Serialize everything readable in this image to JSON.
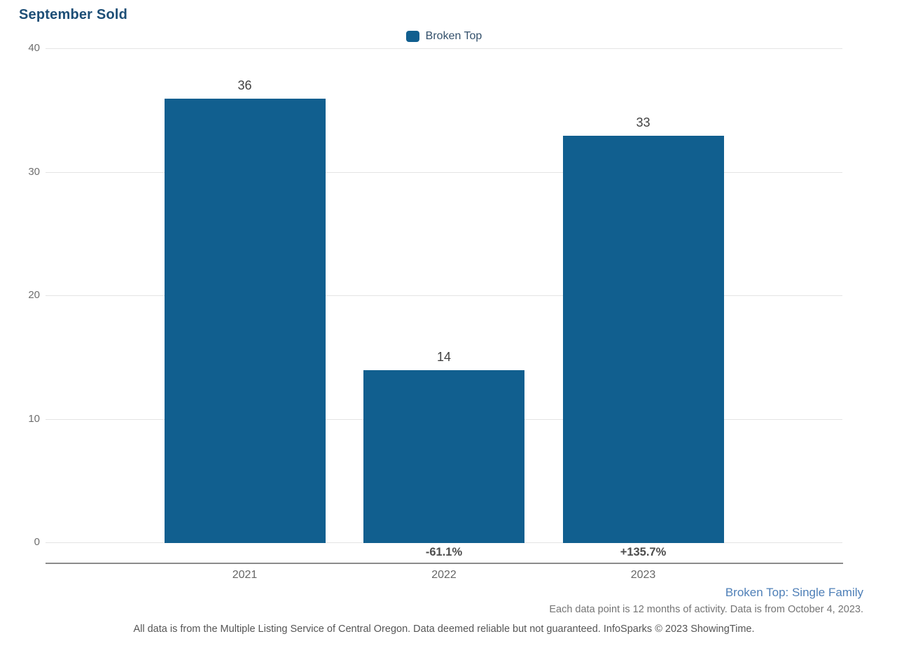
{
  "title": "September Sold",
  "legend": {
    "label": "Broken Top"
  },
  "colors": {
    "bar": "#115f8f",
    "title_text": "#1d4e76",
    "legend_text": "#33506b",
    "series_note_text": "#4e7fb7",
    "gridline": "#e4e4e4",
    "axis_line": "#8c8c8c"
  },
  "chart_data": {
    "type": "bar",
    "title": "September Sold",
    "categories": [
      "2021",
      "2022",
      "2023"
    ],
    "values": [
      36,
      14,
      33
    ],
    "bar_labels": [
      "36",
      "14",
      "33"
    ],
    "pct_change_labels": [
      "",
      "-61.1%",
      "+135.7%"
    ],
    "series": [
      {
        "name": "Broken Top",
        "values": [
          36,
          14,
          33
        ]
      }
    ],
    "xlabel": "",
    "ylabel": "",
    "ylim": [
      0,
      40
    ],
    "yticks": [
      0,
      10,
      20,
      30,
      40
    ],
    "grid": true,
    "legend_position": "top-center"
  },
  "footer": {
    "series_note": "Broken Top: Single Family",
    "period_note": "Each data point is 12 months of activity. Data is from October 4, 2023.",
    "disclaimer": "All data is from the Multiple Listing Service of Central Oregon. Data deemed reliable but not guaranteed. InfoSparks © 2023 ShowingTime."
  }
}
